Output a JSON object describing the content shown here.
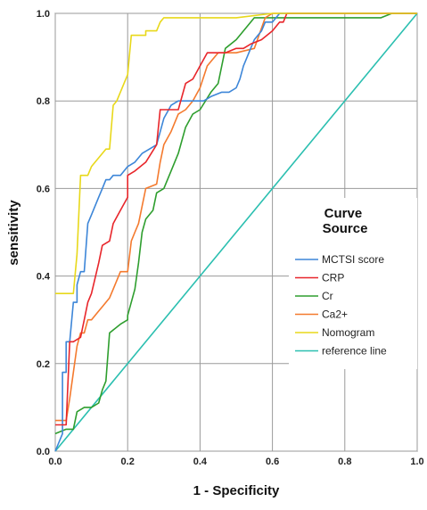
{
  "chart_data": {
    "type": "line",
    "xlabel": "1 - Specificity",
    "ylabel": "sensitivity",
    "xlim": [
      0.0,
      1.0
    ],
    "ylim": [
      0.0,
      1.0
    ],
    "x_ticks": [
      "0.0",
      "0.2",
      "0.4",
      "0.6",
      "0.8",
      "1.0"
    ],
    "y_ticks": [
      "0.0",
      "0.2",
      "0.4",
      "0.6",
      "0.8",
      "1.0"
    ],
    "grid": true,
    "legend": {
      "title": "Curve Source",
      "placement": "right-middle"
    },
    "series": [
      {
        "name": "MCTSI score",
        "color": "#3d86d8",
        "x": [
          0.0,
          0.02,
          0.02,
          0.03,
          0.03,
          0.04,
          0.05,
          0.06,
          0.06,
          0.07,
          0.08,
          0.09,
          0.1,
          0.12,
          0.13,
          0.14,
          0.15,
          0.16,
          0.18,
          0.2,
          0.22,
          0.24,
          0.26,
          0.28,
          0.3,
          0.32,
          0.34,
          0.38,
          0.41,
          0.43,
          0.46,
          0.48,
          0.5,
          0.51,
          0.52,
          0.53,
          0.54,
          0.55,
          0.57,
          0.58,
          0.6,
          0.62,
          0.64,
          0.7,
          0.75,
          0.8,
          0.86,
          0.92,
          1.0
        ],
        "y": [
          0.0,
          0.04,
          0.18,
          0.18,
          0.25,
          0.25,
          0.34,
          0.34,
          0.38,
          0.41,
          0.41,
          0.52,
          0.54,
          0.58,
          0.6,
          0.62,
          0.62,
          0.63,
          0.63,
          0.65,
          0.66,
          0.68,
          0.69,
          0.7,
          0.76,
          0.79,
          0.8,
          0.8,
          0.8,
          0.81,
          0.82,
          0.82,
          0.83,
          0.85,
          0.88,
          0.9,
          0.92,
          0.94,
          0.96,
          0.98,
          0.98,
          1.0,
          1.0,
          1.0,
          1.0,
          1.0,
          1.0,
          1.0,
          1.0
        ]
      },
      {
        "name": "CRP",
        "color": "#e8262b",
        "x": [
          0.0,
          0.03,
          0.04,
          0.05,
          0.07,
          0.08,
          0.09,
          0.1,
          0.12,
          0.13,
          0.15,
          0.16,
          0.18,
          0.2,
          0.2,
          0.22,
          0.25,
          0.28,
          0.29,
          0.31,
          0.34,
          0.36,
          0.38,
          0.4,
          0.42,
          0.45,
          0.47,
          0.5,
          0.52,
          0.54,
          0.57,
          0.6,
          0.62,
          0.63,
          0.64,
          0.65,
          0.7,
          0.8,
          0.9,
          1.0
        ],
        "y": [
          0.06,
          0.06,
          0.25,
          0.25,
          0.26,
          0.3,
          0.34,
          0.36,
          0.43,
          0.47,
          0.48,
          0.52,
          0.55,
          0.58,
          0.63,
          0.64,
          0.66,
          0.7,
          0.78,
          0.78,
          0.78,
          0.84,
          0.85,
          0.88,
          0.91,
          0.91,
          0.91,
          0.92,
          0.92,
          0.93,
          0.94,
          0.96,
          0.98,
          0.98,
          1.0,
          1.0,
          1.0,
          1.0,
          1.0,
          1.0
        ]
      },
      {
        "name": "Cr",
        "color": "#2e9e2e",
        "x": [
          0.0,
          0.03,
          0.05,
          0.06,
          0.08,
          0.1,
          0.12,
          0.13,
          0.14,
          0.15,
          0.18,
          0.2,
          0.2,
          0.22,
          0.23,
          0.24,
          0.25,
          0.27,
          0.28,
          0.3,
          0.32,
          0.34,
          0.36,
          0.38,
          0.4,
          0.43,
          0.45,
          0.47,
          0.5,
          0.55,
          0.6,
          0.65,
          0.7,
          0.8,
          0.9,
          0.93,
          1.0
        ],
        "y": [
          0.04,
          0.05,
          0.05,
          0.09,
          0.1,
          0.1,
          0.11,
          0.14,
          0.16,
          0.27,
          0.29,
          0.3,
          0.31,
          0.37,
          0.43,
          0.5,
          0.53,
          0.55,
          0.59,
          0.6,
          0.64,
          0.68,
          0.74,
          0.77,
          0.78,
          0.82,
          0.84,
          0.92,
          0.94,
          0.99,
          0.99,
          0.99,
          0.99,
          0.99,
          0.99,
          1.0,
          1.0
        ]
      },
      {
        "name": "Ca2+",
        "color": "#f47a2e",
        "x": [
          0.0,
          0.03,
          0.04,
          0.05,
          0.06,
          0.07,
          0.08,
          0.09,
          0.1,
          0.12,
          0.13,
          0.15,
          0.16,
          0.18,
          0.2,
          0.21,
          0.22,
          0.23,
          0.25,
          0.28,
          0.29,
          0.3,
          0.32,
          0.34,
          0.36,
          0.38,
          0.4,
          0.42,
          0.45,
          0.5,
          0.55,
          0.58,
          0.6,
          0.7,
          0.8,
          0.9,
          1.0
        ],
        "y": [
          0.07,
          0.07,
          0.12,
          0.18,
          0.24,
          0.27,
          0.27,
          0.3,
          0.3,
          0.32,
          0.33,
          0.35,
          0.37,
          0.41,
          0.41,
          0.48,
          0.5,
          0.52,
          0.6,
          0.61,
          0.66,
          0.7,
          0.73,
          0.77,
          0.78,
          0.8,
          0.83,
          0.88,
          0.91,
          0.91,
          0.92,
          0.99,
          1.0,
          1.0,
          1.0,
          1.0,
          1.0
        ]
      },
      {
        "name": "Nomogram",
        "color": "#e8d81a",
        "x": [
          0.0,
          0.03,
          0.05,
          0.06,
          0.07,
          0.09,
          0.1,
          0.12,
          0.14,
          0.15,
          0.16,
          0.17,
          0.19,
          0.2,
          0.21,
          0.25,
          0.25,
          0.28,
          0.29,
          0.3,
          0.32,
          0.35,
          0.38,
          0.4,
          0.42,
          0.5,
          0.6,
          0.7,
          0.8,
          0.9,
          1.0
        ],
        "y": [
          0.36,
          0.36,
          0.36,
          0.45,
          0.63,
          0.63,
          0.65,
          0.67,
          0.69,
          0.69,
          0.79,
          0.8,
          0.84,
          0.86,
          0.95,
          0.95,
          0.96,
          0.96,
          0.98,
          0.99,
          0.99,
          0.99,
          0.99,
          0.99,
          0.99,
          0.99,
          1.0,
          1.0,
          1.0,
          1.0,
          1.0
        ]
      },
      {
        "name": "reference line",
        "color": "#2bbfb0",
        "x": [
          0.0,
          1.0
        ],
        "y": [
          0.0,
          1.0
        ]
      }
    ]
  }
}
